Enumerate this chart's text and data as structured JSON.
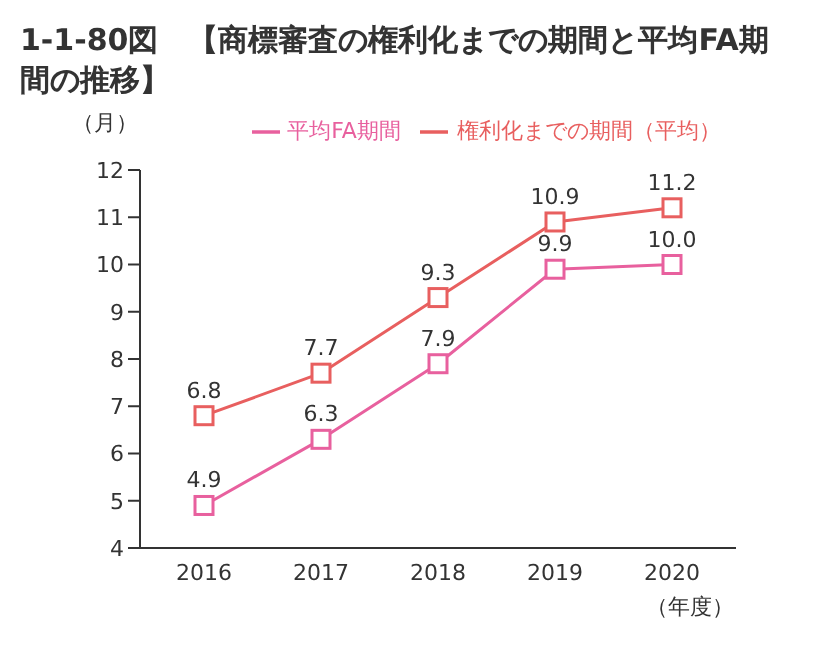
{
  "chart_data": {
    "type": "line",
    "title": "1-1-80図　【商標審査の権利化までの期間と平均FA期間の推移】",
    "ylabel": "（月）",
    "xlabel": "（年度）",
    "categories": [
      "2016",
      "2017",
      "2018",
      "2019",
      "2020"
    ],
    "series": [
      {
        "name": "平均FA期間",
        "color": "#e8609e",
        "values": [
          4.9,
          6.3,
          7.9,
          9.9,
          10.0
        ],
        "value_labels": [
          "4.9",
          "6.3",
          "7.9",
          "9.9",
          "10.0"
        ]
      },
      {
        "name": "権利化までの期間（平均）",
        "color": "#e85f5f",
        "values": [
          6.8,
          7.7,
          9.3,
          10.9,
          11.2
        ],
        "value_labels": [
          "6.8",
          "7.7",
          "9.3",
          "10.9",
          "11.2"
        ]
      }
    ],
    "ylim": [
      4,
      12
    ],
    "yticks": [
      4,
      5,
      6,
      7,
      8,
      9,
      10,
      11,
      12
    ],
    "legend": "top",
    "marker": "square",
    "line_style": "solid"
  }
}
